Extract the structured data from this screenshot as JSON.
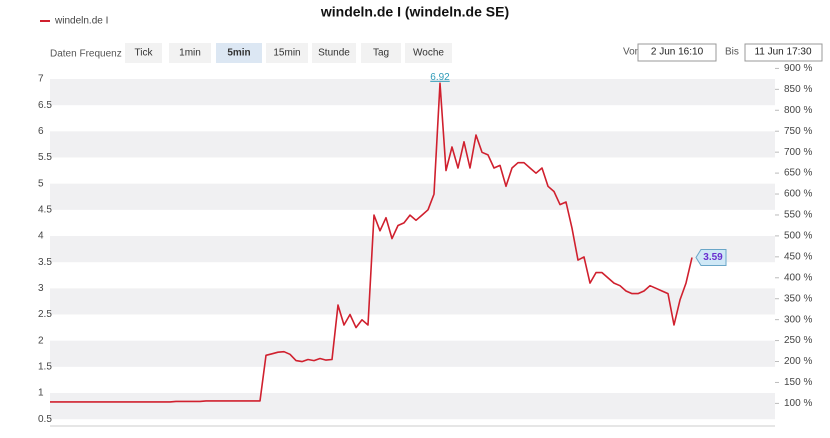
{
  "chart_data": {
    "type": "line",
    "title": "windeln.de I (windeln.de SE)",
    "toolbar": {
      "label": "Daten Frequenz",
      "buttons": [
        "Tick",
        "1min",
        "5min",
        "15min",
        "Stunde",
        "Tag",
        "Woche"
      ],
      "selected": 2,
      "from_label": "Von",
      "from": "2 Jun 16:10",
      "to_label": "Bis",
      "to": "11 Jun 17:30"
    },
    "series": [
      {
        "name": "windeln.de I",
        "color": "#d0202e",
        "values": [
          0.83,
          0.83,
          0.83,
          0.83,
          0.83,
          0.83,
          0.83,
          0.83,
          0.83,
          0.83,
          0.83,
          0.83,
          0.83,
          0.83,
          0.83,
          0.83,
          0.83,
          0.83,
          0.83,
          0.83,
          0.83,
          0.84,
          0.84,
          0.84,
          0.84,
          0.84,
          0.85,
          0.85,
          0.85,
          0.85,
          0.85,
          0.85,
          0.85,
          0.85,
          0.85,
          0.85,
          1.72,
          1.75,
          1.78,
          1.79,
          1.74,
          1.62,
          1.6,
          1.64,
          1.62,
          1.66,
          1.63,
          1.64,
          2.68,
          2.3,
          2.5,
          2.25,
          2.4,
          2.3,
          4.4,
          4.1,
          4.35,
          3.95,
          4.2,
          4.25,
          4.4,
          4.3,
          4.4,
          4.5,
          4.8,
          6.92,
          5.25,
          5.7,
          5.3,
          5.8,
          5.3,
          5.93,
          5.6,
          5.55,
          5.3,
          5.35,
          4.95,
          5.3,
          5.4,
          5.4,
          5.3,
          5.2,
          5.3,
          4.95,
          4.85,
          4.6,
          4.65,
          4.15,
          3.54,
          3.6,
          3.1,
          3.3,
          3.3,
          3.2,
          3.1,
          3.05,
          2.95,
          2.9,
          2.9,
          2.95,
          3.05,
          3.0,
          2.95,
          2.9,
          2.3,
          2.78,
          3.1,
          3.59
        ]
      }
    ],
    "annotations": [
      "6.92",
      "3.59"
    ],
    "ylim": [
      0.37,
      7.21
    ],
    "yticks": [
      0.5,
      1,
      1.5,
      2,
      2.5,
      3,
      3.5,
      4,
      4.5,
      5,
      5.5,
      6,
      6.5,
      7
    ],
    "y2lim": [
      46,
      901
    ],
    "y2ticks": [
      {
        "value": 100,
        "label": "100 %"
      },
      {
        "value": 150,
        "label": "150 %"
      },
      {
        "value": 200,
        "label": "200 %"
      },
      {
        "value": 250,
        "label": "250 %"
      },
      {
        "value": 300,
        "label": "300 %"
      },
      {
        "value": 350,
        "label": "350 %"
      },
      {
        "value": 400,
        "label": "400 %"
      },
      {
        "value": 450,
        "label": "450 %"
      },
      {
        "value": 500,
        "label": "500 %"
      },
      {
        "value": 550,
        "label": "550 %"
      },
      {
        "value": 600,
        "label": "600 %"
      },
      {
        "value": 650,
        "label": "650 %"
      },
      {
        "value": 700,
        "label": "700 %"
      },
      {
        "value": 750,
        "label": "750 %"
      },
      {
        "value": 800,
        "label": "800 %"
      },
      {
        "value": 850,
        "label": "850 %"
      },
      {
        "value": 900,
        "label": "900 %"
      }
    ],
    "grid": "bands"
  }
}
